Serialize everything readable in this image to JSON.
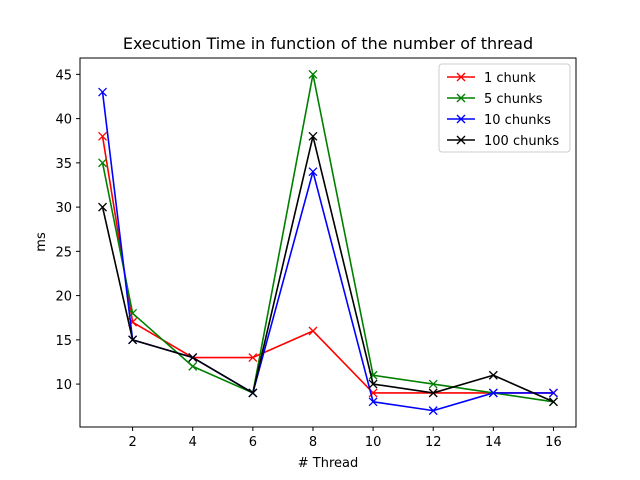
{
  "chart_data": {
    "type": "line",
    "title": "Execution Time in function of the number of thread",
    "xlabel": "# Thread",
    "ylabel": "ms",
    "x": [
      1,
      2,
      4,
      6,
      8,
      10,
      12,
      14,
      16
    ],
    "xticks": [
      2,
      4,
      6,
      8,
      10,
      12,
      14,
      16
    ],
    "yticks": [
      10,
      15,
      20,
      25,
      30,
      35,
      40,
      45
    ],
    "xlim": [
      0.25,
      16.75
    ],
    "ylim": [
      5.15,
      46.85
    ],
    "grid": false,
    "legend_position": "top-right",
    "marker": "x",
    "series": [
      {
        "name": "1 chunk",
        "color": "#ff0000",
        "values": [
          38,
          17,
          13,
          13,
          16,
          9,
          9,
          9,
          9
        ]
      },
      {
        "name": "5 chunks",
        "color": "#008000",
        "values": [
          35,
          18,
          12,
          9,
          45,
          11,
          10,
          9,
          8
        ]
      },
      {
        "name": "10 chunks",
        "color": "#0000ff",
        "values": [
          43,
          15,
          13,
          9,
          34,
          8,
          7,
          9,
          9
        ]
      },
      {
        "name": "100 chunks",
        "color": "#000000",
        "values": [
          30,
          15,
          13,
          9,
          38,
          10,
          9,
          11,
          8
        ]
      }
    ]
  }
}
